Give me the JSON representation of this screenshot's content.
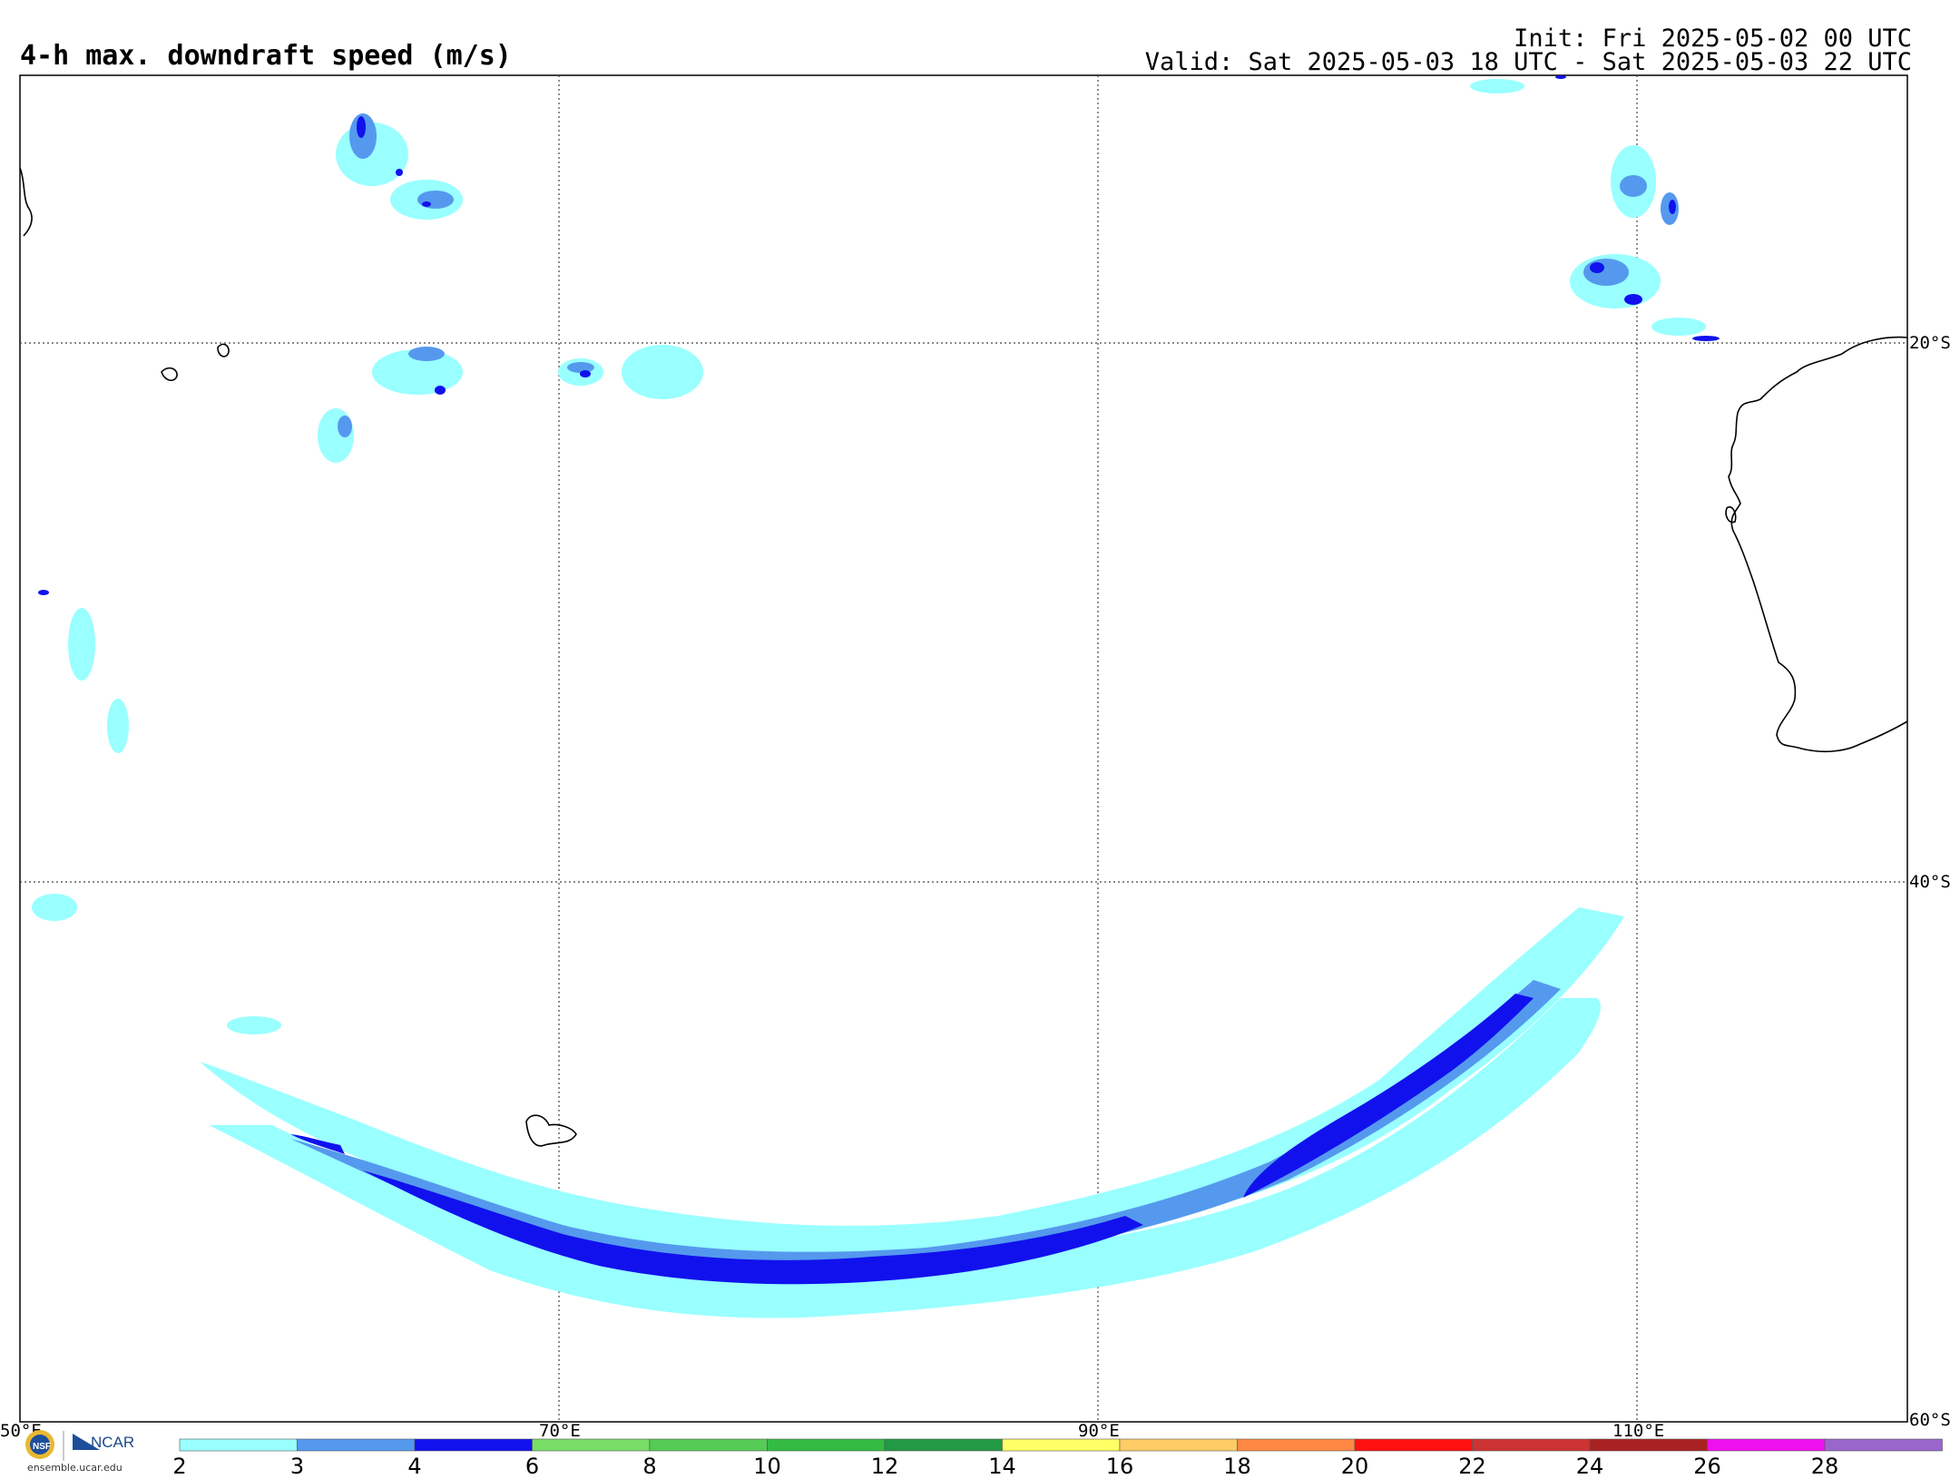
{
  "title": "4-h max. downdraft speed (m/s)",
  "init": "Init: Fri 2025-05-02 00 UTC",
  "valid": "Valid: Sat 2025-05-03 18 UTC - Sat 2025-05-03 22 UTC",
  "lon_labels": [
    "50°E",
    "70°E",
    "90°E",
    "110°E"
  ],
  "lat_labels": [
    "20°S",
    "40°S",
    "60°S"
  ],
  "colorbar": {
    "levels": [
      "2",
      "3",
      "4",
      "6",
      "8",
      "10",
      "12",
      "14",
      "16",
      "18",
      "20",
      "22",
      "24",
      "26",
      "28"
    ],
    "colors": [
      "#99ffff",
      "#5599ee",
      "#1111ee",
      "#77dd66",
      "#55cc55",
      "#33bb44",
      "#229944",
      "#ffff66",
      "#ffcc66",
      "#ff8844",
      "#ff1111",
      "#cc3333",
      "#aa2222",
      "#ee11ee",
      "#9966cc"
    ]
  },
  "logo": {
    "ncar": "NCAR",
    "site": "ensemble.ucar.edu",
    "nsf_icon": "nsf-logo-icon"
  }
}
